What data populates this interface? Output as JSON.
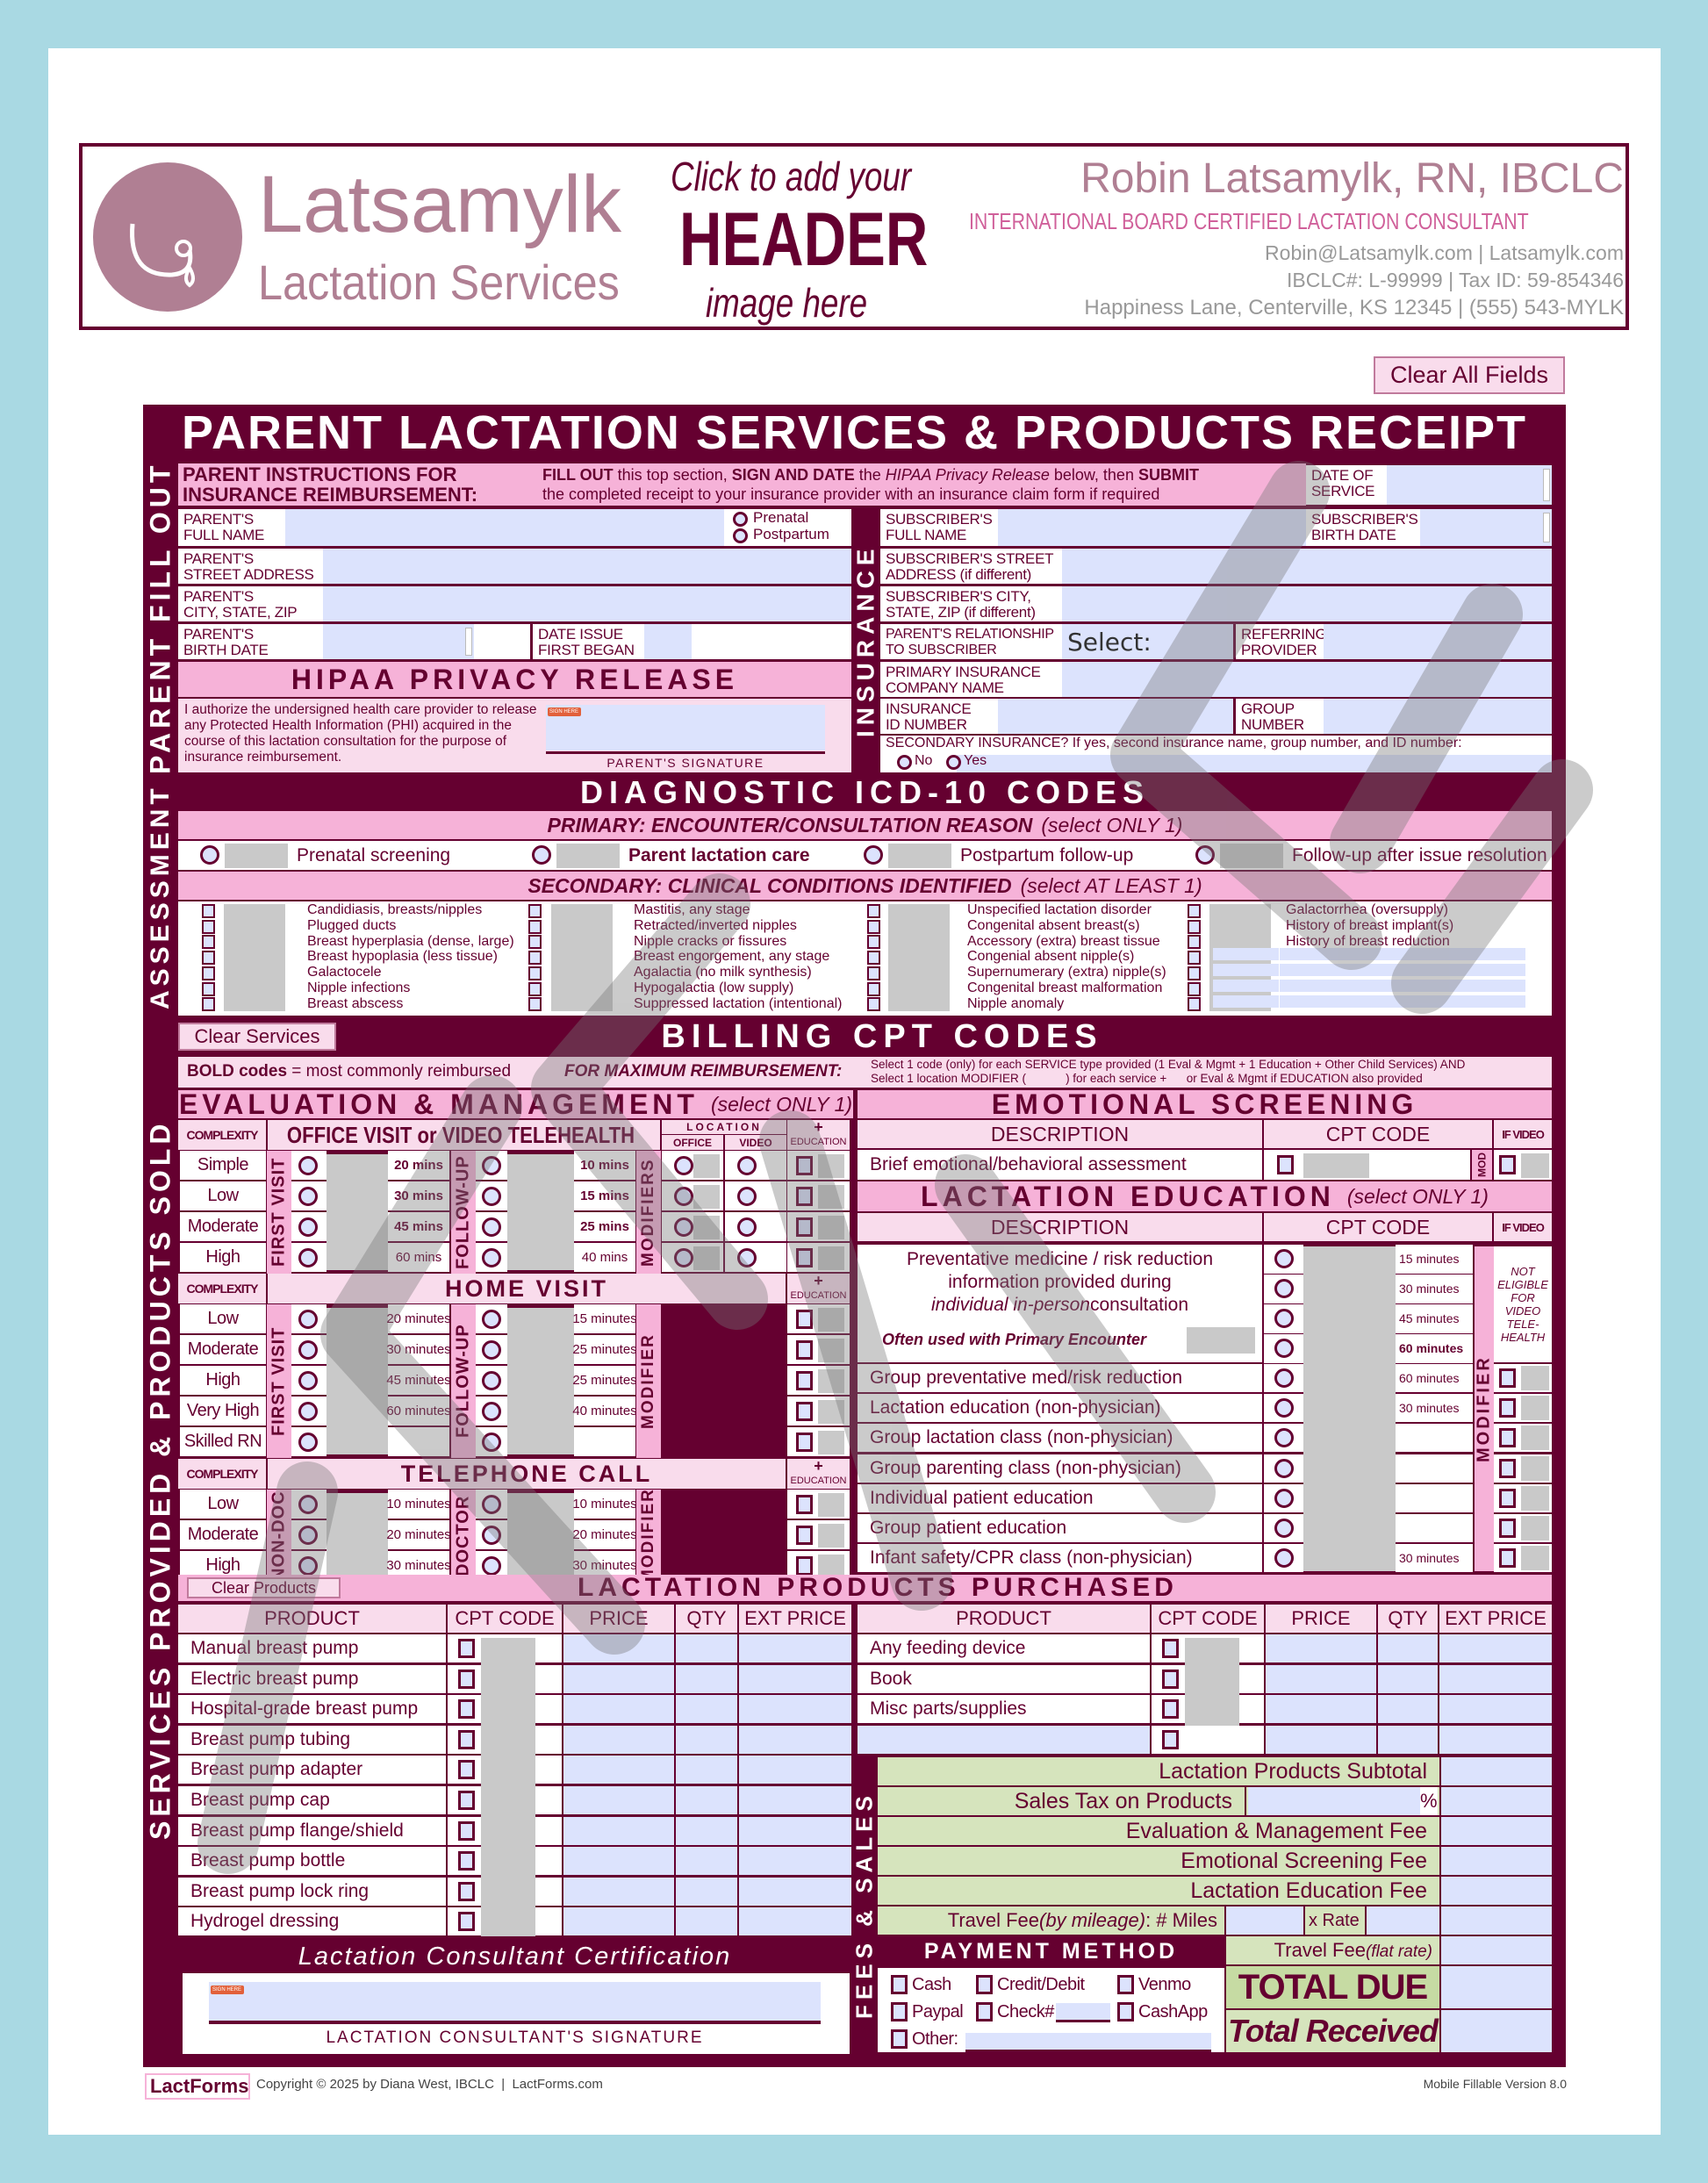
{
  "header": {
    "placeholder_lines": [
      "Click to add your",
      "HEADER",
      "image here"
    ],
    "logo_line1": "Latsamylk",
    "logo_line2": "Lactation Services",
    "name": "Robin Latsamylk, RN, IBCLC",
    "credential": "INTERNATIONAL BOARD CERTIFIED LACTATION CONSULTANT",
    "contact": "Robin@Latsamylk.com | Latsamylk.com",
    "ids": "IBCLC#: L-99999 | Tax ID: 59-854346",
    "address": "Happiness Lane, Centerville, KS 12345 | (555) 543-MYLK"
  },
  "clear_all": "Clear All Fields",
  "title": "PARENT LACTATION SERVICES & PRODUCTS RECEIPT",
  "side_labels": {
    "parent": "PARENT FILL OUT",
    "insurance": "INSURANCE",
    "assessment": "ASSESSMENT",
    "services": "SERVICES PROVIDED & PRODUCTS SOLD",
    "fees": "FEES & SALES"
  },
  "parent": {
    "instructions_title": "PARENT INSTRUCTIONS FOR\nINSURANCE REIMBURSEMENT:",
    "instructions": [
      [
        {
          "t": "FILL OUT",
          "s": "b"
        },
        {
          "t": " this top section, ",
          "s": ""
        },
        {
          "t": "SIGN AND DATE",
          "s": "b"
        },
        {
          "t": " the ",
          "s": ""
        },
        {
          "t": "HIPAA Privacy Release",
          "s": "i"
        },
        {
          "t": " below, then ",
          "s": ""
        },
        {
          "t": "SUBMIT",
          "s": "b"
        }
      ],
      [
        {
          "t": "the completed receipt to your insurance provider with an insurance claim form if required",
          "s": ""
        }
      ]
    ],
    "date_of_service": "DATE OF\nSERVICE",
    "full_name": "PARENT'S\nFULL NAME",
    "stage_options": [
      "Prenatal",
      "Postpartum"
    ],
    "street": "PARENT'S\nSTREET ADDRESS",
    "city": "PARENT'S\nCITY, STATE, ZIP",
    "birth": "PARENT'S\nBIRTH DATE",
    "issue_date": "DATE ISSUE\nFIRST BEGAN"
  },
  "hipaa": {
    "title": "HIPAA PRIVACY RELEASE",
    "text": "I authorize the undersigned health care provider to release any Protected Health Information (PHI) acquired in the course of this lactation consultation for the purpose of insurance reimbursement.",
    "sign_here": "SIGN HERE",
    "signature_label": "PARENT'S SIGNATURE"
  },
  "insurance": {
    "subscriber_name": "SUBSCRIBER'S\nFULL NAME",
    "subscriber_birth": "SUBSCRIBER'S\nBIRTH DATE",
    "street": "SUBSCRIBER'S STREET\nADDRESS (if different)",
    "city": "SUBSCRIBER'S CITY,\nSTATE, ZIP (if different)",
    "relationship": "PARENT'S RELATIONSHIP\nTO SUBSCRIBER",
    "relationship_value": "Select:",
    "referring": "REFERRING\nPROVIDER",
    "company": "PRIMARY INSURANCE\nCOMPANY NAME",
    "id_number": "INSURANCE\nID NUMBER",
    "group": "GROUP\nNUMBER",
    "secondary": "SECONDARY INSURANCE?  If yes, second insurance name, group number, and ID number:",
    "secondary_options": [
      "No",
      "Yes"
    ]
  },
  "diagnostic": {
    "title": "DIAGNOSTIC ICD-10 CODES",
    "primary_label": "PRIMARY:  ENCOUNTER/CONSULTATION REASON",
    "primary_note": "(select ONLY 1)",
    "primary_options": [
      {
        "label": "Prenatal screening",
        "bold": false
      },
      {
        "label": "Parent lactation care",
        "bold": true
      },
      {
        "label": "Postpartum follow-up",
        "bold": false
      },
      {
        "label": "Follow-up after issue resolution",
        "bold": false
      }
    ],
    "secondary_label": "SECONDARY:  CLINICAL CONDITIONS IDENTIFIED",
    "secondary_note": "(select AT LEAST 1)",
    "secondary_columns": [
      [
        "Candidiasis, breasts/nipples",
        "Plugged ducts",
        "Breast hyperplasia (dense, large)",
        "Breast hypoplasia (less tissue)",
        "Galactocele",
        "Nipple infections",
        "Breast abscess"
      ],
      [
        "Mastitis, any stage",
        "Retracted/inverted nipples",
        "Nipple cracks or fissures",
        "Breast engorgement, any stage",
        "Agalactia (no milk synthesis)",
        "Hypogalactia (low supply)",
        "Suppressed lactation (intentional)"
      ],
      [
        "Unspecified lactation disorder",
        "Congenital absent breast(s)",
        "Accessory (extra) breast tissue",
        "Congenial absent nipple(s)",
        "Supernumerary (extra) nipple(s)",
        "Congenital breast malformation",
        "Nipple anomaly"
      ],
      [
        "Galactorrhea (oversupply)",
        "History of breast implant(s)",
        "History of breast reduction"
      ]
    ]
  },
  "billing": {
    "clear_services": "Clear Services",
    "title": "BILLING CPT CODES",
    "bold_note_b": "BOLD codes",
    "bold_note": " = most commonly reimbursed",
    "max_label": "FOR MAXIMUM REIMBURSEMENT:",
    "max_line1": "Select 1 code (only) for each SERVICE type provided (1 Eval & Mgmt + 1 Education + Other Child Services) AND",
    "max_line2": "Select 1 location MODIFIER (            ) for each service +      or Eval & Mgmt if EDUCATION also provided"
  },
  "em": {
    "title": "EVALUATION & MANAGEMENT",
    "note": "(select ONLY 1)",
    "complexity": "COMPLEXITY",
    "office_title": "OFFICE VISIT or VIDEO TELEHEALTH",
    "location": "LOCATION",
    "office": "OFFICE",
    "video": "VIDEO",
    "plus": "+",
    "education": "EDUCATION",
    "first_visit": "FIRST VISIT",
    "follow_up": "FOLLOW-UP",
    "modifiers": "MODIFIERS",
    "modifier": "MODIFIER",
    "office_rows": [
      {
        "c": "Simple",
        "f": "20 mins",
        "u": "10 mins"
      },
      {
        "c": "Low",
        "f": "30 mins",
        "u": "15 mins"
      },
      {
        "c": "Moderate",
        "f": "45 mins",
        "u": "25 mins"
      },
      {
        "c": "High",
        "f": "60 mins",
        "u": "40 mins"
      }
    ],
    "home_title": "HOME VISIT",
    "home_rows": [
      {
        "c": "Low",
        "f": "20 minutes",
        "u": "15 minutes"
      },
      {
        "c": "Moderate",
        "f": "30 minutes",
        "u": "25 minutes"
      },
      {
        "c": "High",
        "f": "45 minutes",
        "u": "25 minutes"
      },
      {
        "c": "Very High",
        "f": "60 minutes",
        "u": "40 minutes"
      },
      {
        "c": "Skilled RN",
        "f": "",
        "u": ""
      }
    ],
    "phone_title": "TELEPHONE CALL",
    "non_doc": "NON-DOC",
    "doctor": "DOCTOR",
    "phone_rows": [
      {
        "c": "Low",
        "f": "10 minutes",
        "u": "10 minutes"
      },
      {
        "c": "Moderate",
        "f": "20 minutes",
        "u": "20 minutes"
      },
      {
        "c": "High",
        "f": "30 minutes",
        "u": "30 minutes"
      }
    ]
  },
  "emotional": {
    "title": "EMOTIONAL SCREENING",
    "description": "DESCRIPTION",
    "cpt": "CPT CODE",
    "if_video": "IF VIDEO",
    "mod": "MOD",
    "row": "Brief emotional/behavioral assessment"
  },
  "education": {
    "title": "LACTATION EDUCATION",
    "note": "(select ONLY 1)",
    "description": "DESCRIPTION",
    "cpt": "CPT CODE",
    "if_video": "IF VIDEO",
    "modifier": "MODIFIER",
    "prev_line1": "Preventative medicine / risk reduction",
    "prev_line2": "information provided during",
    "prev_line3_i": "individual in-person",
    "prev_line3": " consultation",
    "often": "Often used with Primary Encounter",
    "prev_minutes": [
      "15 minutes",
      "30 minutes",
      "45 minutes",
      "60 minutes"
    ],
    "not_eligible": "NOT ELIGIBLE FOR VIDEO TELE-HEALTH",
    "rows": [
      {
        "d": "Group preventative med/risk reduction",
        "m": "60 minutes"
      },
      {
        "d": "Lactation education (non-physician)",
        "m": "30 minutes"
      },
      {
        "d": "Group lactation class (non-physician)",
        "m": ""
      },
      {
        "d": "Group parenting class (non-physician)",
        "m": ""
      },
      {
        "d": "Individual patient education",
        "m": ""
      },
      {
        "d": "Group patient education",
        "m": ""
      },
      {
        "d": "Infant safety/CPR class (non-physician)",
        "m": "30 minutes"
      }
    ]
  },
  "products": {
    "clear_products": "Clear Products",
    "title": "LACTATION PRODUCTS PURCHASED",
    "columns": [
      "PRODUCT",
      "CPT CODE",
      "PRICE",
      "QTY",
      "EXT PRICE"
    ],
    "left": [
      "Manual breast pump",
      "Electric breast pump",
      "Hospital-grade breast pump",
      "Breast pump tubing",
      "Breast pump adapter",
      "Breast pump cap",
      "Breast pump flange/shield",
      "Breast pump bottle",
      "Breast pump lock ring",
      "Hydrogel dressing"
    ],
    "right": [
      "Any feeding device",
      "Book",
      "Misc parts/supplies",
      ""
    ]
  },
  "fees": {
    "subtotal": "Lactation Products Subtotal",
    "tax": "Sales Tax on Products",
    "percent": "%",
    "em_fee": "Evaluation & Management Fee",
    "emotional_fee": "Emotional Screening Fee",
    "education_fee": "Lactation Education Fee",
    "travel_mileage": "Travel Fee",
    "travel_mileage_i": "(by mileage)",
    "miles": ": # Miles",
    "rate": "x Rate",
    "travel_flat": "Travel Fee",
    "travel_flat_i": "(flat rate)",
    "total_due": "TOTAL DUE",
    "total_received": "Total Received"
  },
  "payment": {
    "title": "PAYMENT METHOD",
    "options": [
      "Cash",
      "Credit/Debit",
      "Venmo",
      "Paypal",
      "Check#",
      "CashApp",
      "Other:"
    ]
  },
  "certification": {
    "title": "Lactation Consultant Certification",
    "sign_here": "SIGN HERE",
    "signature_label": "LACTATION CONSULTANT'S SIGNATURE"
  },
  "footer": {
    "logo": "LactForms",
    "copyright": "Copyright © 2025 by Diana West, IBCLC  |  LactForms.com",
    "version": "Mobile Fillable Version 8.0"
  },
  "colors": {
    "maroon": "#650030",
    "pink": "#f6b2d8",
    "light_pink": "#f9dcec",
    "field": "#dce3fd",
    "fees_green": "#d6e4bd",
    "page_bg": "#a9d9e3"
  }
}
